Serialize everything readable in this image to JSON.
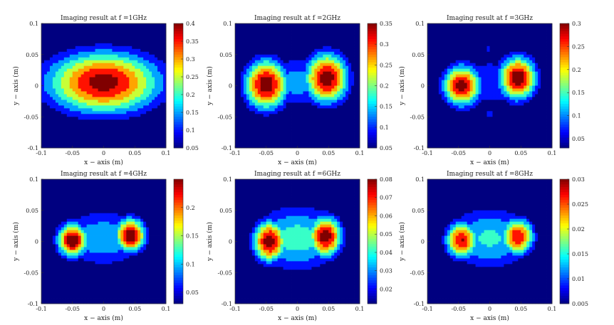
{
  "chart_data": [
    {
      "type": "heatmap",
      "title": "Imaging result at f =1GHz",
      "xlabel": "x − axis (m)",
      "ylabel": "y − axis (m)",
      "xlim": [
        -0.1,
        0.1
      ],
      "ylim": [
        -0.1,
        0.1
      ],
      "xticks": [
        "-0.1",
        "-0.05",
        "0",
        "0.05",
        "0.1"
      ],
      "yticks": [
        "0.1",
        "0.05",
        "0",
        "-0.05",
        "-0.1"
      ],
      "colorbar": {
        "min": 0.05,
        "max": 0.4,
        "ticks": [
          "0.4",
          "0.35",
          "0.3",
          "0.25",
          "0.2",
          "0.15",
          "0.1",
          "0.05"
        ]
      },
      "background": 0.03,
      "blobs": [
        {
          "x": 0,
          "y": 0.005,
          "peak": 0.38,
          "rx": 0.095,
          "ry": 0.052
        }
      ],
      "spots": []
    },
    {
      "type": "heatmap",
      "title": "Imaging result at f =2GHz",
      "xlabel": "x − axis (m)",
      "ylabel": "y − axis (m)",
      "xlim": [
        -0.1,
        0.1
      ],
      "ylim": [
        -0.1,
        0.1
      ],
      "xticks": [
        "-0.1",
        "-0.05",
        "0",
        "0.05",
        "0.1"
      ],
      "yticks": [
        "0.1",
        "0.05",
        "0",
        "-0.05",
        "-0.1"
      ],
      "colorbar": {
        "min": 0.05,
        "max": 0.35,
        "ticks": [
          "0.35",
          "0.3",
          "0.25",
          "0.2",
          "0.15",
          "0.1",
          "0.05"
        ]
      },
      "background": 0.06,
      "blobs": [
        {
          "x": -0.05,
          "y": 0.002,
          "peak": 0.34,
          "rx": 0.037,
          "ry": 0.043
        },
        {
          "x": 0.047,
          "y": 0.012,
          "peak": 0.34,
          "rx": 0.037,
          "ry": 0.043
        },
        {
          "x": 0,
          "y": 0.005,
          "peak": 0.14,
          "rx": 0.09,
          "ry": 0.05
        }
      ],
      "spots": []
    },
    {
      "type": "heatmap",
      "title": "Imaging result at f =3GHz",
      "xlabel": "x − axis (m)",
      "ylabel": "y − axis (m)",
      "xlim": [
        -0.1,
        0.1
      ],
      "ylim": [
        -0.1,
        0.1
      ],
      "xticks": [
        "-0.1",
        "-0.05",
        "0",
        "0.05",
        "0.1"
      ],
      "yticks": [
        "0.1",
        "0.05",
        "0",
        "-0.05",
        "-0.1"
      ],
      "colorbar": {
        "min": 0.03,
        "max": 0.3,
        "ticks": [
          "0.3",
          "0.25",
          "0.2",
          "0.15",
          "0.1",
          "0.05"
        ]
      },
      "background": 0.05,
      "blobs": [
        {
          "x": -0.045,
          "y": 0.0,
          "peak": 0.29,
          "rx": 0.03,
          "ry": 0.033
        },
        {
          "x": 0.045,
          "y": 0.012,
          "peak": 0.3,
          "rx": 0.03,
          "ry": 0.035
        },
        {
          "x": 0,
          "y": 0.005,
          "peak": 0.09,
          "rx": 0.085,
          "ry": 0.05
        }
      ],
      "spots": [
        {
          "x": -0.002,
          "y": 0.06,
          "peak": 0.1,
          "r": 0.005
        },
        {
          "x": 0.0,
          "y": -0.045,
          "peak": 0.12,
          "r": 0.006
        }
      ]
    },
    {
      "type": "heatmap",
      "title": "Imaging result at f =4GHz",
      "xlabel": "x − axis (m)",
      "ylabel": "y − axis (m)",
      "xlim": [
        -0.1,
        0.1
      ],
      "ylim": [
        -0.1,
        0.1
      ],
      "xticks": [
        "-0.1",
        "-0.05",
        "0",
        "0.05",
        "0.1"
      ],
      "yticks": [
        "0.1",
        "0.05",
        "0",
        "-0.05",
        "-0.1"
      ],
      "colorbar": {
        "min": 0.03,
        "max": 0.25,
        "ticks": [
          "0.2",
          "0.15",
          "0.1",
          "0.05"
        ]
      },
      "background": 0.05,
      "blobs": [
        {
          "x": -0.05,
          "y": 0.002,
          "peak": 0.25,
          "rx": 0.025,
          "ry": 0.028
        },
        {
          "x": 0.043,
          "y": 0.01,
          "peak": 0.25,
          "rx": 0.025,
          "ry": 0.028
        },
        {
          "x": 0,
          "y": 0.005,
          "peak": 0.11,
          "rx": 0.08,
          "ry": 0.05
        }
      ],
      "spots": []
    },
    {
      "type": "heatmap",
      "title": "Imaging result at f =6GHz",
      "xlabel": "x − axis (m)",
      "ylabel": "y − axis (m)",
      "xlim": [
        -0.1,
        0.1
      ],
      "ylim": [
        -0.1,
        0.1
      ],
      "xticks": [
        "-0.1",
        "-0.05",
        "0",
        "0.05",
        "0.1"
      ],
      "yticks": [
        "0.1",
        "0.05",
        "0",
        "-0.05",
        "-0.1"
      ],
      "colorbar": {
        "min": 0.012,
        "max": 0.08,
        "ticks": [
          "0.08",
          "0.07",
          "0.06",
          "0.05",
          "0.04",
          "0.03",
          "0.02"
        ]
      },
      "background": 0.02,
      "blobs": [
        {
          "x": -0.045,
          "y": 0.0,
          "peak": 0.078,
          "rx": 0.028,
          "ry": 0.035
        },
        {
          "x": 0.045,
          "y": 0.008,
          "peak": 0.078,
          "rx": 0.028,
          "ry": 0.035
        },
        {
          "x": 0,
          "y": 0.005,
          "peak": 0.042,
          "rx": 0.085,
          "ry": 0.06
        }
      ],
      "spots": []
    },
    {
      "type": "heatmap",
      "title": "Imaging result at f =8GHz",
      "xlabel": "x − axis (m)",
      "ylabel": "y − axis (m)",
      "xlim": [
        -0.1,
        0.1
      ],
      "ylim": [
        -0.1,
        0.1
      ],
      "xticks": [
        "-0.1",
        "-0.05",
        "0",
        "0.05",
        "0.1"
      ],
      "yticks": [
        "0.1",
        "0.05",
        "0",
        "-0.05",
        "-0.1"
      ],
      "colorbar": {
        "min": 0.005,
        "max": 0.03,
        "ticks": [
          "0.03",
          "0.025",
          "0.02",
          "0.015",
          "0.01",
          "0.005"
        ]
      },
      "background": 0.008,
      "blobs": [
        {
          "x": -0.045,
          "y": 0.002,
          "peak": 0.027,
          "rx": 0.028,
          "ry": 0.032
        },
        {
          "x": 0.045,
          "y": 0.008,
          "peak": 0.027,
          "rx": 0.028,
          "ry": 0.032
        },
        {
          "x": 0,
          "y": 0.005,
          "peak": 0.015,
          "rx": 0.085,
          "ry": 0.06
        }
      ],
      "spots": [
        {
          "x": -0.05,
          "y": 0.0,
          "peak": 0.03,
          "r": 0.004
        },
        {
          "x": 0.045,
          "y": 0.01,
          "peak": 0.03,
          "r": 0.004
        }
      ]
    }
  ]
}
